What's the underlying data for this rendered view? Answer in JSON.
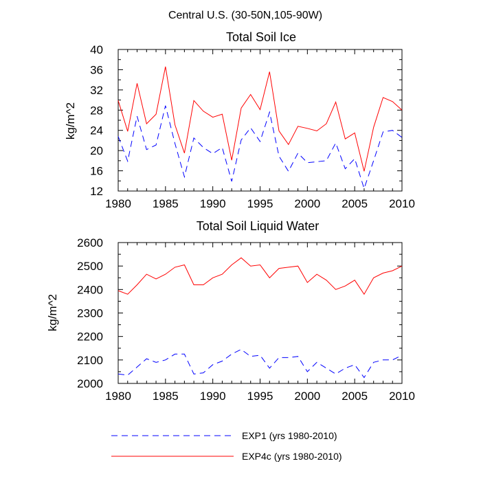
{
  "figure_title": "Central U.S. (30-50N,105-90W)",
  "colors": {
    "EXP1": "#0000ff",
    "EXP4c": "#ff0000"
  },
  "legend": [
    {
      "name": "EXP1 (yrs 1980-2010)",
      "color": "#0000ff",
      "dash": true
    },
    {
      "name": "EXP4c (yrs 1980-2010)",
      "color": "#ff0000",
      "dash": false
    }
  ],
  "chart_data": [
    {
      "type": "line",
      "title": "Total Soil Ice",
      "xlabel": "",
      "ylabel": "kg/m^2",
      "xlim": [
        1980,
        2010
      ],
      "ylim": [
        12,
        40
      ],
      "xticks": [
        1980,
        1985,
        1990,
        1995,
        2000,
        2005,
        2010
      ],
      "yticks": [
        12,
        16,
        20,
        24,
        28,
        32,
        36,
        40
      ],
      "x": [
        1980,
        1981,
        1982,
        1983,
        1984,
        1985,
        1986,
        1987,
        1988,
        1989,
        1990,
        1991,
        1992,
        1993,
        1994,
        1995,
        1996,
        1997,
        1998,
        1999,
        2000,
        2001,
        2002,
        2003,
        2004,
        2005,
        2006,
        2007,
        2008,
        2009,
        2010
      ],
      "series": [
        {
          "name": "EXP1 (yrs 1980-2010)",
          "key": "EXP1",
          "values": [
            22.8,
            17.9,
            26.8,
            20.2,
            21.1,
            28.9,
            21.4,
            14.8,
            22.5,
            20.6,
            19.4,
            20.6,
            13.9,
            22.1,
            24.5,
            21.8,
            27.6,
            18.9,
            15.9,
            19.5,
            17.6,
            17.8,
            18.0,
            21.5,
            16.4,
            18.4,
            12.5,
            18.0,
            23.7,
            24.0,
            22.6
          ]
        },
        {
          "name": "EXP4c (yrs 1980-2010)",
          "key": "EXP4c",
          "values": [
            29.9,
            23.8,
            33.3,
            25.3,
            27.2,
            36.6,
            25.1,
            19.5,
            29.9,
            27.8,
            26.6,
            27.2,
            18.1,
            28.4,
            31.1,
            28.1,
            35.6,
            23.9,
            21.2,
            24.8,
            24.4,
            23.9,
            25.3,
            29.6,
            22.3,
            23.5,
            15.9,
            24.6,
            30.5,
            29.7,
            28.0
          ]
        }
      ]
    },
    {
      "type": "line",
      "title": "Total Soil Liquid Water",
      "xlabel": "",
      "ylabel": "kg/m^2",
      "xlim": [
        1980,
        2010
      ],
      "ylim": [
        2000,
        2600
      ],
      "xticks": [
        1980,
        1985,
        1990,
        1995,
        2000,
        2005,
        2010
      ],
      "yticks": [
        2000,
        2100,
        2200,
        2300,
        2400,
        2500,
        2600
      ],
      "x": [
        1980,
        1981,
        1982,
        1983,
        1984,
        1985,
        1986,
        1987,
        1988,
        1989,
        1990,
        1991,
        1992,
        1993,
        1994,
        1995,
        1996,
        1997,
        1998,
        1999,
        2000,
        2001,
        2002,
        2003,
        2004,
        2005,
        2006,
        2007,
        2008,
        2009,
        2010
      ],
      "series": [
        {
          "name": "EXP1 (yrs 1980-2010)",
          "key": "EXP1",
          "values": [
            2040,
            2035,
            2070,
            2105,
            2090,
            2100,
            2125,
            2125,
            2040,
            2045,
            2080,
            2095,
            2125,
            2145,
            2115,
            2120,
            2065,
            2110,
            2110,
            2115,
            2050,
            2090,
            2065,
            2040,
            2065,
            2080,
            2025,
            2090,
            2100,
            2100,
            2120
          ]
        },
        {
          "name": "EXP4c (yrs 1980-2010)",
          "key": "EXP4c",
          "values": [
            2395,
            2380,
            2420,
            2465,
            2445,
            2465,
            2495,
            2505,
            2420,
            2420,
            2450,
            2465,
            2505,
            2535,
            2500,
            2505,
            2450,
            2490,
            2495,
            2500,
            2430,
            2465,
            2440,
            2400,
            2415,
            2440,
            2380,
            2450,
            2470,
            2480,
            2500
          ]
        }
      ]
    }
  ]
}
